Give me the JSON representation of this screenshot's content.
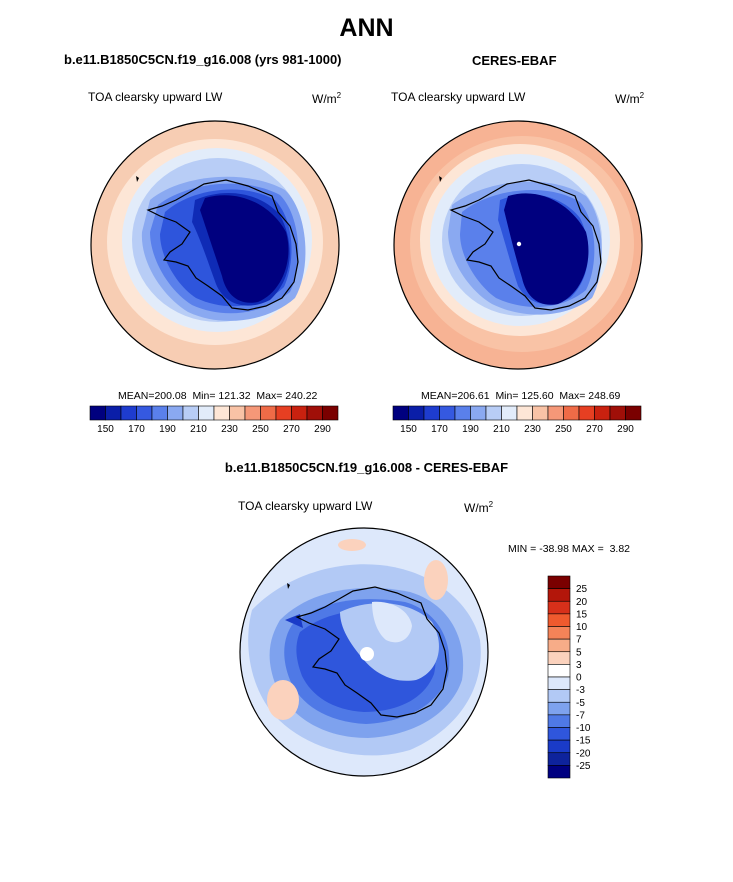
{
  "figure": {
    "title": "ANN"
  },
  "panels": [
    {
      "id": "model",
      "title": "b.e11.B1850C5CN.f19_g16.008 (yrs 981-1000)",
      "variable": "TOA clearsky upward LW",
      "units_base": "W/m",
      "units_exp": "2",
      "stats": {
        "mean_label": "MEAN=",
        "mean": "200.08",
        "min_label": "Min=",
        "min": "121.32",
        "max_label": "Max=",
        "max": "240.22"
      }
    },
    {
      "id": "obs",
      "title": "CERES-EBAF",
      "variable": "TOA clearsky upward LW",
      "units_base": "W/m",
      "units_exp": "2",
      "stats": {
        "mean_label": "MEAN=",
        "mean": "206.61",
        "min_label": "Min=",
        "min": "125.60",
        "max_label": "Max=",
        "max": "248.69"
      }
    },
    {
      "id": "diff",
      "title": "b.e11.B1850C5CN.f19_g16.008 - CERES-EBAF",
      "variable": "TOA clearsky upward LW",
      "units_base": "W/m",
      "units_exp": "2",
      "stats": {
        "min_label": "MIN =",
        "min": "-38.98",
        "max_label": "MAX =",
        "max": "3.82"
      }
    }
  ],
  "colorbar_abs": {
    "colors": [
      "#00007f",
      "#0a1ea8",
      "#1e3ccf",
      "#3559e0",
      "#5a80eb",
      "#8aa9f1",
      "#b8cdf6",
      "#e2ecfa",
      "#fde6d6",
      "#f9c3a6",
      "#f59878",
      "#ef6b47",
      "#e63f22",
      "#c9210f",
      "#a00f08",
      "#7a0000"
    ],
    "tick_labels": [
      "150",
      "170",
      "190",
      "210",
      "230",
      "250",
      "270",
      "290"
    ]
  },
  "colorbar_diff": {
    "colors": [
      "#7a0000",
      "#b3160a",
      "#d7301a",
      "#ef5a2e",
      "#f48358",
      "#f7ac88",
      "#fbd2bd",
      "#ffffff",
      "#dde8fb",
      "#b2c9f5",
      "#7ea2ee",
      "#4f79e6",
      "#2f56dc",
      "#1a3bc8",
      "#0e239c",
      "#000080"
    ],
    "tick_labels": [
      "25",
      "20",
      "15",
      "10",
      "7",
      "5",
      "3",
      "0",
      "-3",
      "-5",
      "-7",
      "-10",
      "-15",
      "-20",
      "-25"
    ]
  },
  "map_palette": {
    "ice_core": "#00007f",
    "ice_dark": "#0f2bb6",
    "ice_mid": "#2e55dc",
    "coast_blue": "#5a80eb",
    "ocean_light": "#8aa9f1",
    "ocean_pale": "#b8cdf6",
    "ocean_faint": "#e2ecfa",
    "warm_light": "#fde6d6",
    "warm_mid": "#f9c3a6",
    "warm_strong": "#f59878"
  }
}
